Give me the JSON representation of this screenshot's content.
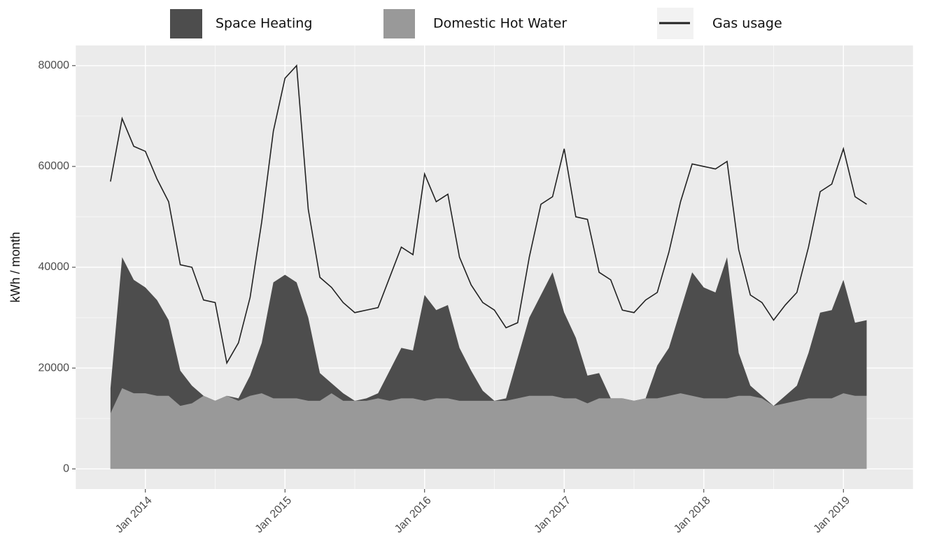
{
  "chart_data": {
    "type": "area",
    "title": "",
    "xlabel": "",
    "ylabel": "kWh / month",
    "ylim": [
      -4000,
      84000
    ],
    "y_ticks": [
      0,
      20000,
      40000,
      60000,
      80000
    ],
    "y_tick_labels": [
      "0",
      "20000",
      "40000",
      "60000",
      "80000"
    ],
    "x_range": [
      "2013-07",
      "2019-07"
    ],
    "x_ticks": [
      "2014-01",
      "2015-01",
      "2016-01",
      "2017-01",
      "2018-01",
      "2019-01"
    ],
    "x_tick_labels": [
      "Jan 2014",
      "Jan 2015",
      "Jan 2016",
      "Jan 2017",
      "Jan 2018",
      "Jan 2019"
    ],
    "grid": true,
    "legend_position": "top",
    "legend": [
      {
        "label": "Space Heating",
        "kind": "area",
        "color": "#4d4d4d"
      },
      {
        "label": "Domestic Hot Water",
        "kind": "area",
        "color": "#999999"
      },
      {
        "label": "Gas usage",
        "kind": "line",
        "color": "#222222"
      }
    ],
    "x": [
      "2013-10",
      "2013-11",
      "2013-12",
      "2014-01",
      "2014-02",
      "2014-03",
      "2014-04",
      "2014-05",
      "2014-06",
      "2014-07",
      "2014-08",
      "2014-09",
      "2014-10",
      "2014-11",
      "2014-12",
      "2015-01",
      "2015-02",
      "2015-03",
      "2015-04",
      "2015-05",
      "2015-06",
      "2015-07",
      "2015-08",
      "2015-09",
      "2015-10",
      "2015-11",
      "2015-12",
      "2016-01",
      "2016-02",
      "2016-03",
      "2016-04",
      "2016-05",
      "2016-06",
      "2016-07",
      "2016-08",
      "2016-09",
      "2016-10",
      "2016-11",
      "2016-12",
      "2017-01",
      "2017-02",
      "2017-03",
      "2017-04",
      "2017-05",
      "2017-06",
      "2017-07",
      "2017-08",
      "2017-09",
      "2017-10",
      "2017-11",
      "2017-12",
      "2018-01",
      "2018-02",
      "2018-03",
      "2018-04",
      "2018-05",
      "2018-06",
      "2018-07",
      "2018-08",
      "2018-09",
      "2018-10",
      "2018-11",
      "2018-12",
      "2019-01",
      "2019-02",
      "2019-03"
    ],
    "series": [
      {
        "name": "Domestic Hot Water",
        "kind": "area",
        "color": "#999999",
        "values": [
          11000,
          16000,
          15000,
          15000,
          14500,
          14500,
          12500,
          13000,
          14500,
          13500,
          14500,
          13500,
          14500,
          15000,
          14000,
          14000,
          14000,
          13500,
          13500,
          15000,
          13500,
          13500,
          13500,
          14000,
          13500,
          14000,
          14000,
          13500,
          14000,
          14000,
          13500,
          13500,
          13500,
          13500,
          13500,
          14000,
          14500,
          14500,
          14500,
          14000,
          14000,
          13000,
          14000,
          14000,
          14000,
          13500,
          14000,
          14000,
          14500,
          15000,
          14500,
          14000,
          14000,
          14000,
          14500,
          14500,
          14000,
          12500,
          13000,
          13500,
          14000,
          14000,
          14000,
          15000,
          14500,
          14500
        ]
      },
      {
        "name": "Space Heating",
        "kind": "area",
        "color": "#4d4d4d",
        "values": [
          16000,
          42000,
          37500,
          36000,
          33500,
          29500,
          19500,
          16500,
          14500,
          13500,
          14500,
          14000,
          18500,
          25000,
          37000,
          38500,
          37000,
          30000,
          19000,
          17000,
          15000,
          13500,
          14000,
          15000,
          19500,
          24000,
          23500,
          34500,
          31500,
          32500,
          24000,
          19500,
          15500,
          13500,
          14000,
          22000,
          30000,
          34500,
          39000,
          31000,
          26000,
          18500,
          19000,
          14000,
          14000,
          13500,
          14000,
          20500,
          24000,
          31500,
          39000,
          36000,
          35000,
          42000,
          23000,
          16500,
          14500,
          12500,
          14500,
          16500,
          23000,
          31000,
          31500,
          37500,
          29000,
          29500
        ]
      },
      {
        "name": "Gas usage",
        "kind": "line",
        "color": "#222222",
        "values": [
          57000,
          69500,
          64000,
          63000,
          57500,
          53000,
          40500,
          40000,
          33500,
          33000,
          21000,
          25000,
          34000,
          49000,
          67000,
          77500,
          80000,
          51500,
          38000,
          36000,
          33000,
          31000,
          31500,
          32000,
          38000,
          44000,
          42500,
          58500,
          53000,
          54500,
          42000,
          36500,
          33000,
          31500,
          28000,
          29000,
          42000,
          52500,
          54000,
          63500,
          50000,
          49500,
          39000,
          37500,
          31500,
          31000,
          33500,
          35000,
          43000,
          53000,
          60500,
          60000,
          59500,
          61000,
          43500,
          34500,
          33000,
          29500,
          32500,
          35000,
          44000,
          55000,
          56500,
          63500,
          54000,
          52500
        ]
      }
    ]
  }
}
